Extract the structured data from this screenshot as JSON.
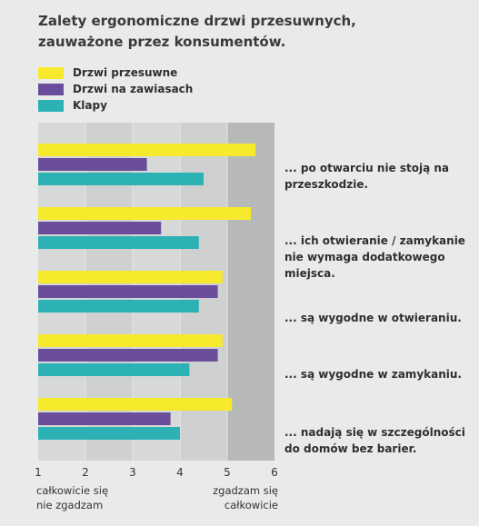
{
  "title_line1": "Zalety ergonomiczne drzwi przesuwnych,",
  "title_line2": "zauważone przez konsumentów.",
  "anchors": {
    "left_line1": "całkowicie się",
    "left_line2": "nie zgadzam",
    "right_line1": "zgadzam się",
    "right_line2": "całkowicie"
  },
  "colors": {
    "background": "#e9eaea",
    "band_light": "#d4d6d6",
    "band_dark": "#b7b9b9",
    "Drzwi przesuwne": "#f7e92c",
    "Drzwi na zawiasach": "#6a4e9c",
    "Klapy": "#2cb1b4"
  },
  "chart_data": {
    "type": "bar",
    "orientation": "horizontal",
    "title": "Zalety ergonomiczne drzwi przesuwnych, zauważone przez konsumentów.",
    "categories": [
      "... po otwarciu nie stoją na przeszkodzie.",
      "... ich otwieranie / zamykanie nie wymaga dodatkowego miejsca.",
      "... są wygodne w otwieraniu.",
      "... są wygodne w zamykaniu.",
      "... nadają się w szczególności do domów bez barier."
    ],
    "series": [
      {
        "name": "Drzwi przesuwne",
        "values": [
          5.6,
          5.5,
          4.9,
          4.9,
          5.1
        ]
      },
      {
        "name": "Drzwi na zawiasach",
        "values": [
          3.3,
          3.6,
          4.8,
          4.8,
          3.8
        ]
      },
      {
        "name": "Klapy",
        "values": [
          4.5,
          4.4,
          4.4,
          4.2,
          4.0
        ]
      }
    ],
    "xlim": [
      1,
      6
    ],
    "xticks": [
      1,
      2,
      3,
      4,
      5,
      6
    ],
    "legend": "top-left",
    "grid": false
  }
}
